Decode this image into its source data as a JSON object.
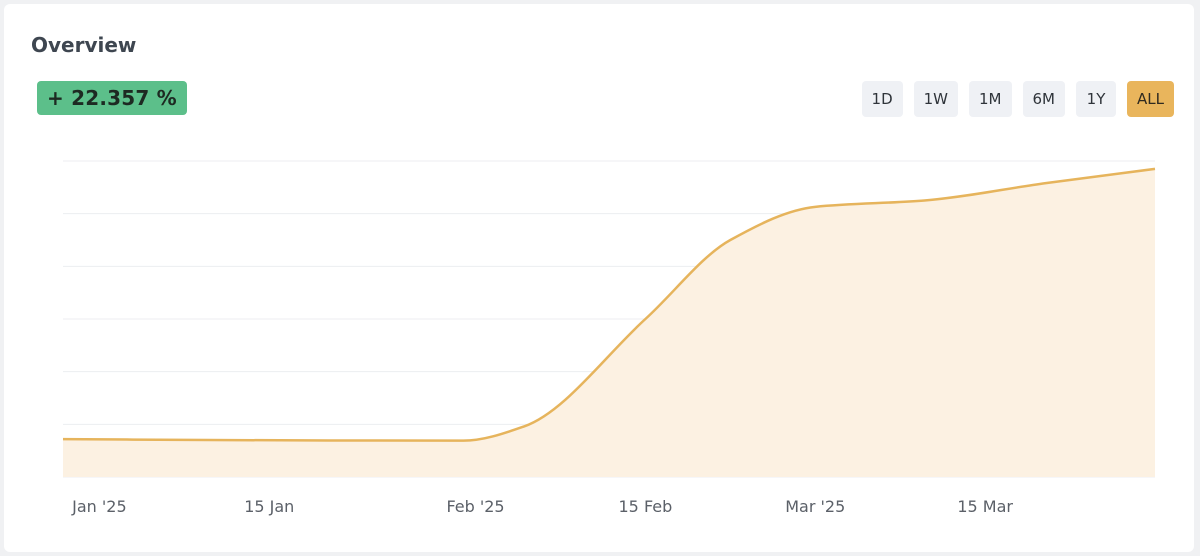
{
  "overview": {
    "title": "Overview",
    "change": "+ 22.357 %"
  },
  "ranges": [
    {
      "label": "1D",
      "active": false
    },
    {
      "label": "1W",
      "active": false
    },
    {
      "label": "1M",
      "active": false
    },
    {
      "label": "6M",
      "active": false
    },
    {
      "label": "1Y",
      "active": false
    },
    {
      "label": "ALL",
      "active": true
    }
  ],
  "colors": {
    "line": "#e6b45c",
    "area": "#fcf1e2",
    "badge": "#5cbf8a",
    "active_button": "#e9b55c",
    "grid": "#eceef1"
  },
  "chart_data": {
    "type": "area",
    "title": "",
    "xlabel": "",
    "ylabel": "",
    "grid": true,
    "x_ticks": [
      {
        "label": "Jan '25",
        "date": "2025-01-01"
      },
      {
        "label": "15 Jan",
        "date": "2025-01-15"
      },
      {
        "label": "Feb '25",
        "date": "2025-02-01"
      },
      {
        "label": "15 Feb",
        "date": "2025-02-15"
      },
      {
        "label": "Mar '25",
        "date": "2025-03-01"
      },
      {
        "label": "15 Mar",
        "date": "2025-03-15"
      }
    ],
    "xlim": [
      "2024-12-29",
      "2025-03-29"
    ],
    "ylim": [
      0,
      100
    ],
    "series": [
      {
        "values": [
          {
            "x": "2024-12-29",
            "y": 12
          },
          {
            "x": "2025-01-10",
            "y": 11.7
          },
          {
            "x": "2025-01-31",
            "y": 11.5
          },
          {
            "x": "2025-02-05",
            "y": 16
          },
          {
            "x": "2025-02-15",
            "y": 50
          },
          {
            "x": "2025-02-22",
            "y": 75
          },
          {
            "x": "2025-03-01",
            "y": 85.5
          },
          {
            "x": "2025-03-10",
            "y": 87.5
          },
          {
            "x": "2025-03-20",
            "y": 93
          },
          {
            "x": "2025-03-29",
            "y": 97.5
          }
        ]
      }
    ]
  }
}
